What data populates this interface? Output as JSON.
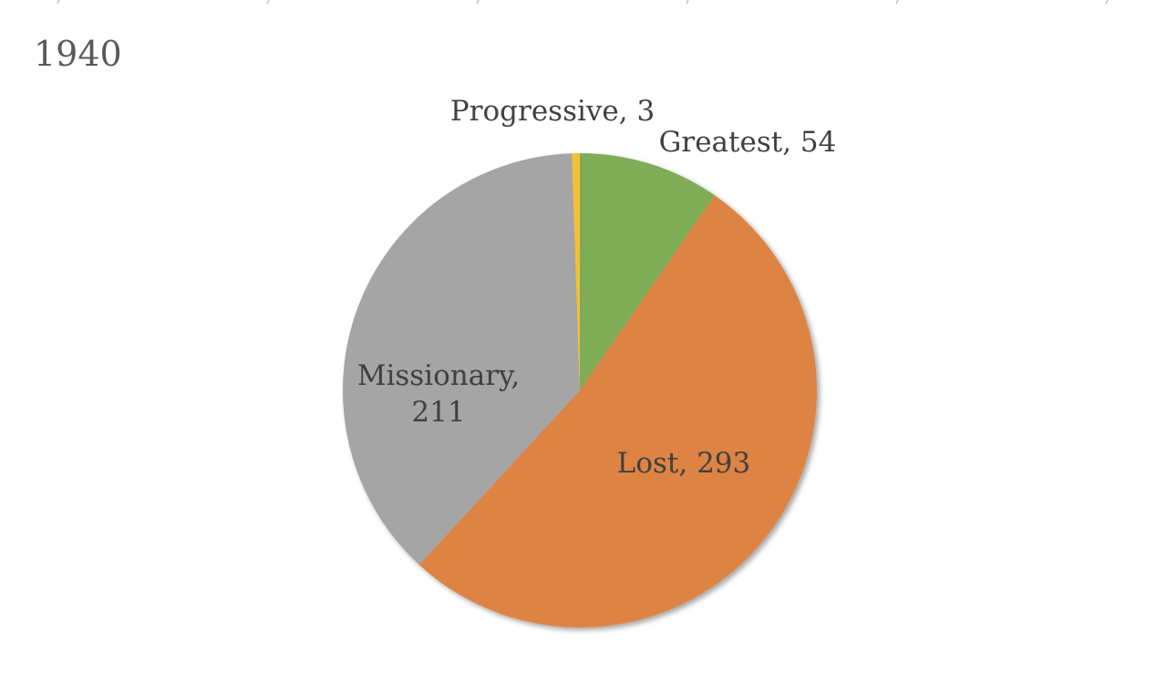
{
  "chart_data": {
    "type": "pie",
    "title": "1940",
    "slices": [
      {
        "label": "Greatest",
        "value": 54,
        "color": "#7fac56"
      },
      {
        "label": "Lost",
        "value": 293,
        "color": "#dd8444"
      },
      {
        "label": "Missionary",
        "value": 211,
        "color": "#a5a5a5"
      },
      {
        "label": "Progressive",
        "value": 3,
        "color": "#f6c036"
      }
    ],
    "start_angle_deg": 0,
    "direction": "clockwise",
    "data_labels": "category, value",
    "legend": "none"
  }
}
